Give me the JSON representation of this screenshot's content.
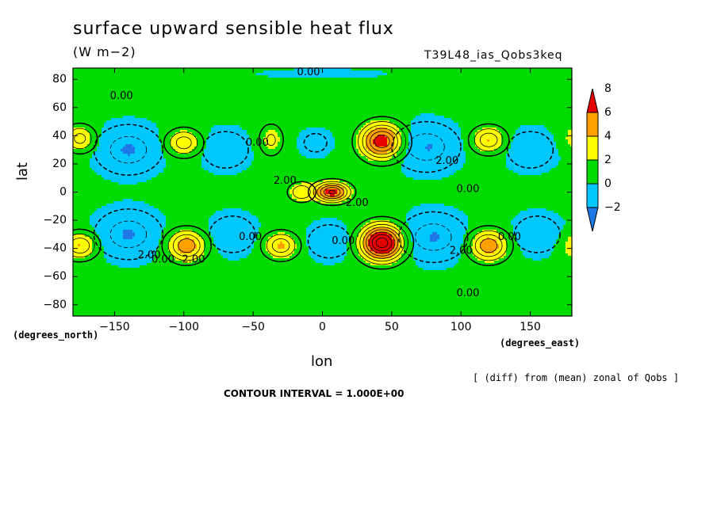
{
  "chart_data": {
    "type": "heatmap",
    "title": "surface upward sensible heat flux",
    "units": "(W m−2)",
    "run_id": "T39L48_ias_Qobs3keq",
    "xlabel": "lon",
    "ylabel": "lat",
    "x_note": "(degrees_east)",
    "y_note": "(degrees_north)",
    "xlim": [
      -180,
      180
    ],
    "ylim": [
      -88,
      88
    ],
    "x_ticks": [
      -150,
      -100,
      -50,
      0,
      50,
      100,
      150
    ],
    "x_tick_labels": [
      "−150",
      "−100",
      "−50",
      "0",
      "50",
      "100",
      "150"
    ],
    "y_ticks": [
      80,
      60,
      40,
      20,
      0,
      -20,
      -40,
      -60,
      -80
    ],
    "y_tick_labels": [
      "80",
      "60",
      "40",
      "20",
      "0",
      "−20",
      "−40",
      "−60",
      "−80"
    ],
    "colorbar": {
      "levels": [
        -2,
        0,
        2,
        4,
        6,
        8
      ],
      "labels": [
        "−2",
        "0",
        "2",
        "4",
        "6",
        "8"
      ],
      "colors": [
        "#1e78e6",
        "#00c8ff",
        "#00dc00",
        "#ffff00",
        "#ffa000",
        "#e60000"
      ]
    },
    "background_value": 0.5,
    "features": [
      {
        "lon": -140,
        "lat": 30,
        "amp": -2.6,
        "sx": 18,
        "sy": 13
      },
      {
        "lon": -70,
        "lat": 30,
        "amp": -2.0,
        "sx": 14,
        "sy": 11
      },
      {
        "lon": -5,
        "lat": 35,
        "amp": -1.4,
        "sx": 10,
        "sy": 8
      },
      {
        "lon": 75,
        "lat": 32,
        "amp": -2.6,
        "sx": 18,
        "sy": 13
      },
      {
        "lon": 150,
        "lat": 30,
        "amp": -2.0,
        "sx": 14,
        "sy": 11
      },
      {
        "lon": -140,
        "lat": -30,
        "amp": -2.6,
        "sx": 18,
        "sy": 13
      },
      {
        "lon": -65,
        "lat": -30,
        "amp": -2.0,
        "sx": 14,
        "sy": 11
      },
      {
        "lon": 5,
        "lat": -35,
        "amp": -2.0,
        "sx": 13,
        "sy": 10
      },
      {
        "lon": 80,
        "lat": -32,
        "amp": -2.6,
        "sx": 18,
        "sy": 13
      },
      {
        "lon": 155,
        "lat": -30,
        "amp": -2.0,
        "sx": 14,
        "sy": 11
      },
      {
        "lon": -100,
        "lat": 35,
        "amp": 3.6,
        "sx": 9,
        "sy": 7
      },
      {
        "lon": -175,
        "lat": 38,
        "amp": 3.4,
        "sx": 8,
        "sy": 7
      },
      {
        "lon": -37,
        "lat": 37,
        "amp": 2.2,
        "sx": 7,
        "sy": 9
      },
      {
        "lon": 43,
        "lat": 36,
        "amp": 6.8,
        "sx": 11,
        "sy": 9
      },
      {
        "lon": 120,
        "lat": 37,
        "amp": 3.8,
        "sx": 9,
        "sy": 7
      },
      {
        "lon": -175,
        "lat": -38,
        "amp": 4.0,
        "sx": 9,
        "sy": 7
      },
      {
        "lon": -98,
        "lat": -38,
        "amp": 4.8,
        "sx": 10,
        "sy": 8
      },
      {
        "lon": -30,
        "lat": -38,
        "amp": 3.8,
        "sx": 9,
        "sy": 7
      },
      {
        "lon": 43,
        "lat": -36,
        "amp": 8.6,
        "sx": 11,
        "sy": 9
      },
      {
        "lon": 120,
        "lat": -38,
        "amp": 4.8,
        "sx": 10,
        "sy": 8
      },
      {
        "lon": 7,
        "lat": 0,
        "amp": 6.2,
        "sx": 9,
        "sy": 5
      },
      {
        "lon": -15,
        "lat": 0,
        "amp": 3.0,
        "sx": 7,
        "sy": 5
      },
      {
        "lon": 0,
        "lat": 84,
        "amp": -1.0,
        "sx": 40,
        "sy": 3
      }
    ],
    "contour_labels": [
      {
        "text": "0.00",
        "lon": -145,
        "lat": 68
      },
      {
        "text": "0.00",
        "lon": -10,
        "lat": 85
      },
      {
        "text": "0.00",
        "lon": -47,
        "lat": 35
      },
      {
        "text": "2.00",
        "lon": -27,
        "lat": 8
      },
      {
        "text": "2.00",
        "lon": 25,
        "lat": -8
      },
      {
        "text": "2.00",
        "lon": 90,
        "lat": 22
      },
      {
        "text": "0.00",
        "lon": 105,
        "lat": 2
      },
      {
        "text": "0.00",
        "lon": -52,
        "lat": -32
      },
      {
        "text": "0.00",
        "lon": 15,
        "lat": -35
      },
      {
        "text": "2.00",
        "lon": 100,
        "lat": -42
      },
      {
        "text": "0.00",
        "lon": 135,
        "lat": -32
      },
      {
        "text": "2.00",
        "lon": -125,
        "lat": -45
      },
      {
        "text": "2.00",
        "lon": -93,
        "lat": -48
      },
      {
        "text": "0.00",
        "lon": -115,
        "lat": -48
      },
      {
        "text": "0.00",
        "lon": 105,
        "lat": -72
      }
    ]
  },
  "contour_interval_text": "CONTOUR INTERVAL = 1.000E+00",
  "diff_note": "[ (diff) from (mean) zonal of Qobs ]"
}
